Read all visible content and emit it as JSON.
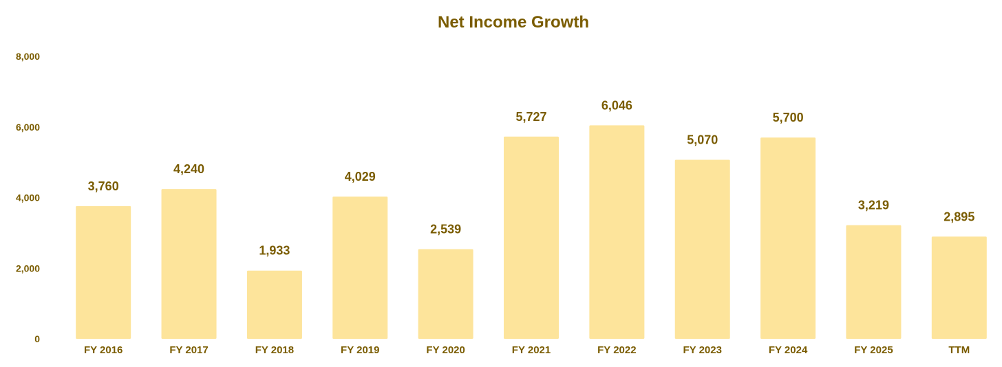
{
  "chart_data": {
    "type": "bar",
    "title": "Net Income Growth",
    "xlabel": "",
    "ylabel": "",
    "categories": [
      "FY 2016",
      "FY 2017",
      "FY 2018",
      "FY 2019",
      "FY 2020",
      "FY 2021",
      "FY 2022",
      "FY 2023",
      "FY 2024",
      "FY 2025",
      "TTM"
    ],
    "values": [
      3760,
      4240,
      1933,
      4029,
      2539,
      5727,
      6046,
      5070,
      5700,
      3219,
      2895
    ],
    "value_labels": [
      "3,760",
      "4,240",
      "1,933",
      "4,029",
      "2,539",
      "5,727",
      "6,046",
      "5,070",
      "5,700",
      "3,219",
      "2,895"
    ],
    "ylim": [
      0,
      8000
    ],
    "yticks": [
      0,
      2000,
      4000,
      6000,
      8000
    ],
    "ytick_labels": [
      "0",
      "2,000",
      "4,000",
      "6,000",
      "8,000"
    ],
    "grid": false,
    "legend": "none"
  },
  "colors": {
    "bar": "#FDE49B",
    "text": "#7A5C00",
    "background": "#FFFFFF"
  }
}
